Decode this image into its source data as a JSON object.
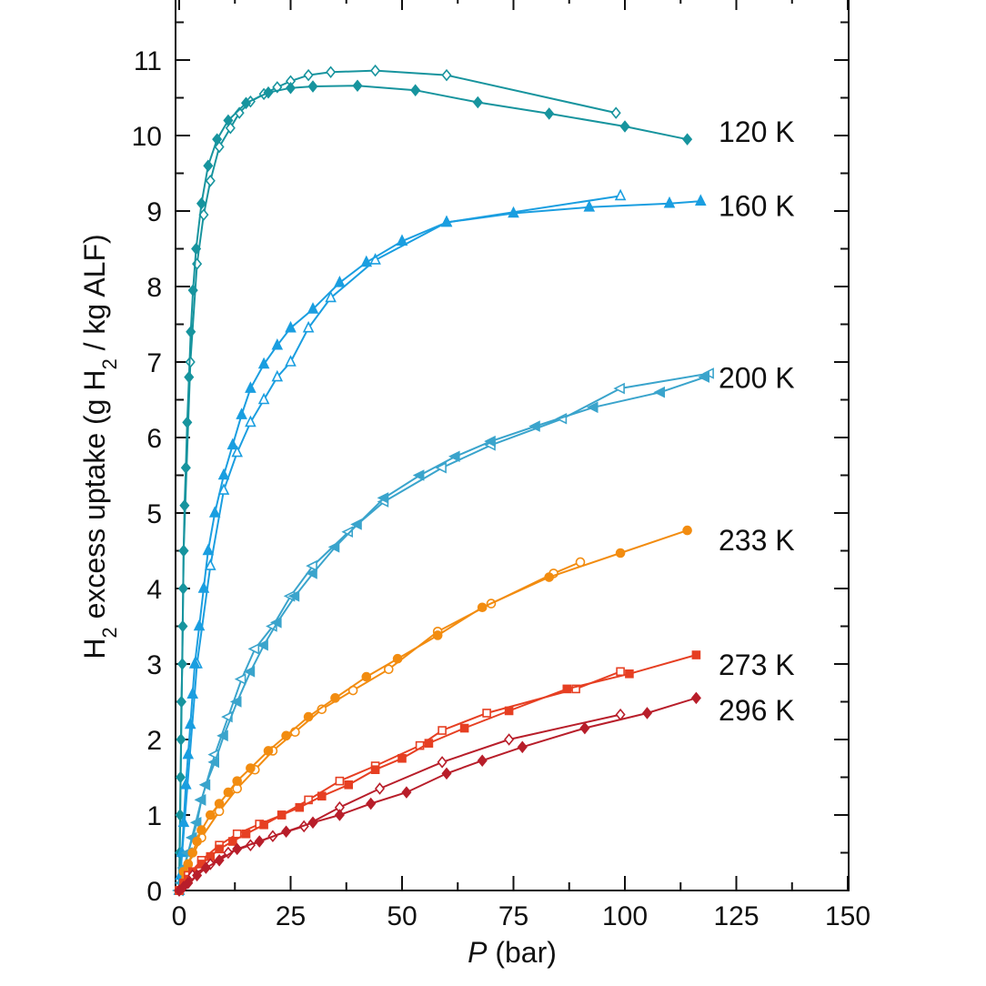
{
  "chart_data": {
    "type": "scatter",
    "xlabel": "P (bar)",
    "ylabel": "H2 excess uptake (g H2 / kg ALF)",
    "xlim": [
      0,
      150
    ],
    "ylim": [
      0,
      11.9
    ],
    "x_ticks": [
      0,
      25,
      50,
      75,
      100,
      125,
      150
    ],
    "y_ticks": [
      0,
      1,
      2,
      3,
      4,
      5,
      6,
      7,
      8,
      9,
      10,
      11
    ],
    "grid": false,
    "series": [
      {
        "name": "120 K",
        "color": "#17949e",
        "marker": "diamond",
        "adsorption": [
          [
            0,
            0
          ],
          [
            0.1,
            0.5
          ],
          [
            0.2,
            1.0
          ],
          [
            0.3,
            1.5
          ],
          [
            0.4,
            2.0
          ],
          [
            0.5,
            2.5
          ],
          [
            0.7,
            3.0
          ],
          [
            0.8,
            3.5
          ],
          [
            0.9,
            4.0
          ],
          [
            1.0,
            4.5
          ],
          [
            1.2,
            5.1
          ],
          [
            1.5,
            5.6
          ],
          [
            1.8,
            6.2
          ],
          [
            2.2,
            6.8
          ],
          [
            2.6,
            7.4
          ],
          [
            3.1,
            7.95
          ],
          [
            3.8,
            8.5
          ],
          [
            5.0,
            9.1
          ],
          [
            6.5,
            9.6
          ],
          [
            8.5,
            9.95
          ],
          [
            11,
            10.2
          ],
          [
            15,
            10.43
          ],
          [
            20,
            10.57
          ],
          [
            25,
            10.63
          ],
          [
            30,
            10.65
          ],
          [
            40,
            10.66
          ],
          [
            53,
            10.6
          ],
          [
            67,
            10.44
          ],
          [
            83,
            10.29
          ],
          [
            100,
            10.12
          ],
          [
            114,
            9.95
          ]
        ],
        "desorption": [
          [
            0,
            0
          ],
          [
            1.0,
            4.5
          ],
          [
            2.5,
            7.0
          ],
          [
            4.0,
            8.3
          ],
          [
            5.5,
            8.95
          ],
          [
            7.0,
            9.4
          ],
          [
            9.0,
            9.85
          ],
          [
            11.5,
            10.1
          ],
          [
            13.5,
            10.3
          ],
          [
            16,
            10.45
          ],
          [
            19,
            10.55
          ],
          [
            22,
            10.64
          ],
          [
            25,
            10.72
          ],
          [
            29,
            10.8
          ],
          [
            34,
            10.84
          ],
          [
            44,
            10.86
          ],
          [
            60,
            10.8
          ],
          [
            98,
            10.3
          ]
        ]
      },
      {
        "name": "160 K",
        "color": "#1a9ee0",
        "marker": "triangle",
        "adsorption": [
          [
            0,
            0
          ],
          [
            0.3,
            0.2
          ],
          [
            0.6,
            0.5
          ],
          [
            1.0,
            0.9
          ],
          [
            1.5,
            1.4
          ],
          [
            2,
            1.8
          ],
          [
            2.5,
            2.2
          ],
          [
            3,
            2.6
          ],
          [
            3.5,
            3.0
          ],
          [
            4.5,
            3.5
          ],
          [
            5.5,
            4.0
          ],
          [
            6.5,
            4.5
          ],
          [
            8,
            5.0
          ],
          [
            10,
            5.5
          ],
          [
            12,
            5.9
          ],
          [
            14,
            6.3
          ],
          [
            16,
            6.65
          ],
          [
            19,
            6.97
          ],
          [
            22,
            7.22
          ],
          [
            25,
            7.45
          ],
          [
            30,
            7.7
          ],
          [
            36,
            8.05
          ],
          [
            42,
            8.32
          ],
          [
            50,
            8.6
          ],
          [
            60,
            8.85
          ],
          [
            75,
            8.97
          ],
          [
            92,
            9.05
          ],
          [
            110,
            9.1
          ],
          [
            117,
            9.13
          ]
        ],
        "desorption": [
          [
            0,
            0
          ],
          [
            4,
            3.0
          ],
          [
            7,
            4.3
          ],
          [
            10,
            5.3
          ],
          [
            13,
            5.8
          ],
          [
            16,
            6.2
          ],
          [
            19,
            6.5
          ],
          [
            22,
            6.8
          ],
          [
            25,
            7.0
          ],
          [
            29,
            7.45
          ],
          [
            34,
            7.85
          ],
          [
            44,
            8.35
          ],
          [
            60,
            8.85
          ],
          [
            99,
            9.2
          ]
        ]
      },
      {
        "name": "200 K",
        "color": "#3aa4cc",
        "marker": "left-triangle",
        "adsorption": [
          [
            0,
            0
          ],
          [
            0.5,
            0.1
          ],
          [
            1,
            0.3
          ],
          [
            2,
            0.5
          ],
          [
            3,
            0.7
          ],
          [
            4,
            0.9
          ],
          [
            5,
            1.2
          ],
          [
            6,
            1.4
          ],
          [
            8,
            1.7
          ],
          [
            10,
            2.05
          ],
          [
            13,
            2.5
          ],
          [
            16,
            2.9
          ],
          [
            19,
            3.25
          ],
          [
            22,
            3.55
          ],
          [
            26,
            3.9
          ],
          [
            30,
            4.2
          ],
          [
            35,
            4.55
          ],
          [
            40,
            4.85
          ],
          [
            46,
            5.2
          ],
          [
            54,
            5.5
          ],
          [
            62,
            5.75
          ],
          [
            70,
            5.95
          ],
          [
            80,
            6.15
          ],
          [
            93,
            6.4
          ],
          [
            108,
            6.6
          ],
          [
            118,
            6.8
          ]
        ],
        "desorption": [
          [
            0,
            0
          ],
          [
            2,
            0.5
          ],
          [
            5,
            1.2
          ],
          [
            8,
            1.8
          ],
          [
            11,
            2.3
          ],
          [
            14,
            2.8
          ],
          [
            17,
            3.2
          ],
          [
            21,
            3.5
          ],
          [
            25,
            3.9
          ],
          [
            30,
            4.3
          ],
          [
            38,
            4.75
          ],
          [
            46,
            5.15
          ],
          [
            59,
            5.6
          ],
          [
            70,
            5.9
          ],
          [
            86,
            6.25
          ],
          [
            99,
            6.65
          ],
          [
            119,
            6.85
          ]
        ]
      },
      {
        "name": "233 K",
        "color": "#f28c10",
        "marker": "circle",
        "adsorption": [
          [
            0,
            0
          ],
          [
            1,
            0.25
          ],
          [
            2,
            0.35
          ],
          [
            3,
            0.5
          ],
          [
            4,
            0.65
          ],
          [
            5,
            0.8
          ],
          [
            7,
            1.0
          ],
          [
            9,
            1.15
          ],
          [
            11,
            1.3
          ],
          [
            13,
            1.45
          ],
          [
            16,
            1.62
          ],
          [
            20,
            1.85
          ],
          [
            24,
            2.05
          ],
          [
            29,
            2.3
          ],
          [
            35,
            2.55
          ],
          [
            42,
            2.83
          ],
          [
            49,
            3.07
          ],
          [
            58,
            3.38
          ],
          [
            68,
            3.75
          ],
          [
            83,
            4.15
          ],
          [
            99,
            4.47
          ],
          [
            114,
            4.77
          ]
        ],
        "desorption": [
          [
            0,
            0
          ],
          [
            2,
            0.35
          ],
          [
            5,
            0.7
          ],
          [
            9,
            1.05
          ],
          [
            13,
            1.35
          ],
          [
            17,
            1.6
          ],
          [
            21,
            1.85
          ],
          [
            26,
            2.1
          ],
          [
            32,
            2.4
          ],
          [
            39,
            2.65
          ],
          [
            47,
            2.93
          ],
          [
            58,
            3.43
          ],
          [
            70,
            3.8
          ],
          [
            84,
            4.2
          ],
          [
            90,
            4.35
          ]
        ]
      },
      {
        "name": "273 K",
        "color": "#e63f22",
        "marker": "square",
        "adsorption": [
          [
            0,
            0
          ],
          [
            1,
            0.1
          ],
          [
            2,
            0.15
          ],
          [
            3,
            0.25
          ],
          [
            5,
            0.35
          ],
          [
            7,
            0.45
          ],
          [
            9,
            0.55
          ],
          [
            12,
            0.65
          ],
          [
            15,
            0.75
          ],
          [
            19,
            0.87
          ],
          [
            23,
            1.0
          ],
          [
            27,
            1.1
          ],
          [
            32,
            1.25
          ],
          [
            38,
            1.4
          ],
          [
            44,
            1.6
          ],
          [
            50,
            1.75
          ],
          [
            56,
            1.95
          ],
          [
            64,
            2.15
          ],
          [
            74,
            2.38
          ],
          [
            87,
            2.67
          ],
          [
            101,
            2.87
          ],
          [
            116,
            3.12
          ]
        ],
        "desorption": [
          [
            0,
            0
          ],
          [
            2,
            0.2
          ],
          [
            5,
            0.4
          ],
          [
            9,
            0.6
          ],
          [
            13,
            0.75
          ],
          [
            18,
            0.88
          ],
          [
            23,
            1.0
          ],
          [
            29,
            1.2
          ],
          [
            36,
            1.45
          ],
          [
            44,
            1.65
          ],
          [
            54,
            1.92
          ],
          [
            59,
            2.12
          ],
          [
            69,
            2.35
          ],
          [
            89,
            2.67
          ],
          [
            99,
            2.9
          ]
        ]
      },
      {
        "name": "296 K",
        "color": "#b81e2a",
        "marker": "diamond",
        "adsorption": [
          [
            0,
            0
          ],
          [
            1,
            0.05
          ],
          [
            2,
            0.1
          ],
          [
            4,
            0.2
          ],
          [
            6,
            0.3
          ],
          [
            9,
            0.4
          ],
          [
            13,
            0.55
          ],
          [
            18,
            0.65
          ],
          [
            24,
            0.78
          ],
          [
            30,
            0.9
          ],
          [
            36,
            1.0
          ],
          [
            43,
            1.15
          ],
          [
            51,
            1.3
          ],
          [
            60,
            1.55
          ],
          [
            68,
            1.72
          ],
          [
            77,
            1.9
          ],
          [
            91,
            2.15
          ],
          [
            105,
            2.35
          ],
          [
            116,
            2.55
          ]
        ],
        "desorption": [
          [
            0,
            0
          ],
          [
            3,
            0.2
          ],
          [
            7,
            0.35
          ],
          [
            11,
            0.5
          ],
          [
            16,
            0.6
          ],
          [
            21,
            0.72
          ],
          [
            28,
            0.85
          ],
          [
            36,
            1.1
          ],
          [
            45,
            1.35
          ],
          [
            59,
            1.7
          ],
          [
            74,
            2.0
          ],
          [
            99,
            2.33
          ]
        ]
      }
    ]
  }
}
